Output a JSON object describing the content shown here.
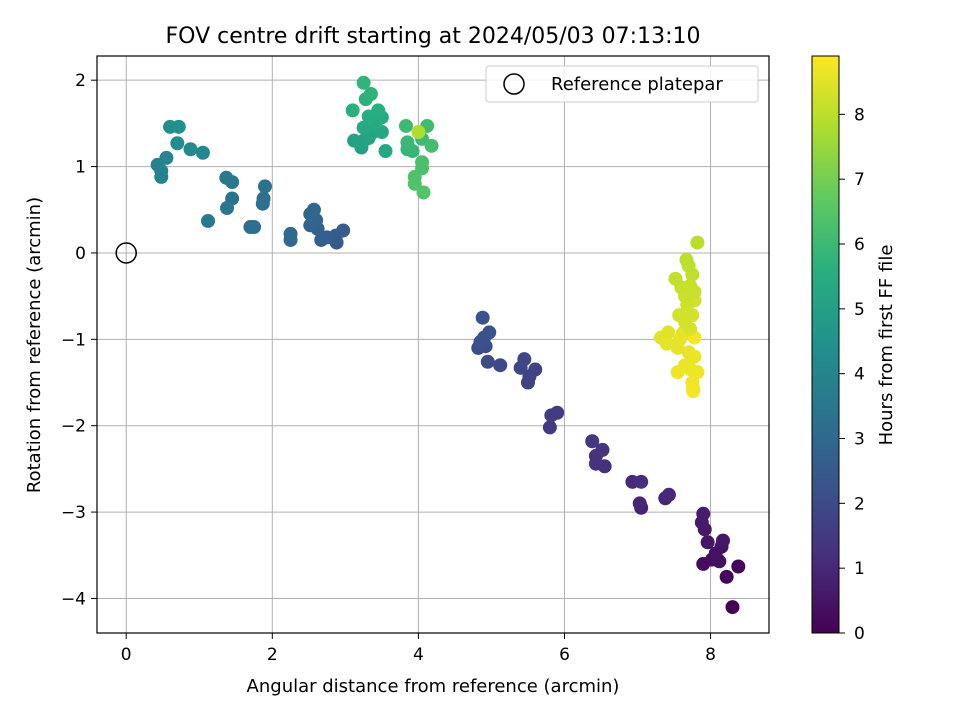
{
  "chart_data": {
    "type": "scatter",
    "title": "FOV centre drift starting at 2024/05/03 07:13:10",
    "xlabel": "Angular distance from reference (arcmin)",
    "ylabel": "Rotation from reference (arcmin)",
    "xlim": [
      -0.4,
      8.8
    ],
    "ylim": [
      -4.4,
      2.28
    ],
    "xticks": [
      0,
      2,
      4,
      6,
      8
    ],
    "yticks": [
      -4,
      -3,
      -2,
      -1,
      0,
      1,
      2
    ],
    "xtick_labels": [
      "0",
      "2",
      "4",
      "6",
      "8"
    ],
    "ytick_labels": [
      "−4",
      "−3",
      "−2",
      "−1",
      "0",
      "1",
      "2"
    ],
    "grid": true,
    "legend": {
      "position": "top-right",
      "entries": [
        "Reference platepar"
      ]
    },
    "reference_point": {
      "x": 0,
      "y": 0,
      "label": "Reference platepar"
    },
    "colorbar": {
      "label": "Hours from first FF file",
      "range": [
        0,
        8.9
      ],
      "ticks": [
        0,
        1,
        2,
        3,
        4,
        5,
        6,
        7,
        8
      ],
      "tick_labels": [
        "0",
        "1",
        "2",
        "3",
        "4",
        "5",
        "6",
        "7",
        "8"
      ],
      "colormap": "viridis"
    },
    "points": [
      {
        "x": 8.3,
        "y": -4.1,
        "t": 0.05
      },
      {
        "x": 8.22,
        "y": -3.75,
        "t": 0.15
      },
      {
        "x": 8.38,
        "y": -3.63,
        "t": 0.2
      },
      {
        "x": 7.9,
        "y": -3.6,
        "t": 0.25
      },
      {
        "x": 8.02,
        "y": -3.55,
        "t": 0.3
      },
      {
        "x": 8.12,
        "y": -3.57,
        "t": 0.35
      },
      {
        "x": 8.07,
        "y": -3.48,
        "t": 0.4
      },
      {
        "x": 8.15,
        "y": -3.4,
        "t": 0.45
      },
      {
        "x": 7.96,
        "y": -3.35,
        "t": 0.5
      },
      {
        "x": 8.17,
        "y": -3.33,
        "t": 0.55
      },
      {
        "x": 7.92,
        "y": -3.2,
        "t": 0.6
      },
      {
        "x": 7.88,
        "y": -3.12,
        "t": 0.65
      },
      {
        "x": 7.9,
        "y": -3.02,
        "t": 0.7
      },
      {
        "x": 7.05,
        "y": -2.95,
        "t": 0.85
      },
      {
        "x": 7.03,
        "y": -2.9,
        "t": 0.9
      },
      {
        "x": 7.38,
        "y": -2.84,
        "t": 0.95
      },
      {
        "x": 7.43,
        "y": -2.8,
        "t": 1.0
      },
      {
        "x": 6.93,
        "y": -2.65,
        "t": 1.05
      },
      {
        "x": 7.05,
        "y": -2.65,
        "t": 1.1
      },
      {
        "x": 6.55,
        "y": -2.47,
        "t": 1.2
      },
      {
        "x": 6.43,
        "y": -2.44,
        "t": 1.25
      },
      {
        "x": 6.43,
        "y": -2.35,
        "t": 1.3
      },
      {
        "x": 6.52,
        "y": -2.28,
        "t": 1.35
      },
      {
        "x": 6.38,
        "y": -2.18,
        "t": 1.4
      },
      {
        "x": 5.8,
        "y": -2.02,
        "t": 1.5
      },
      {
        "x": 5.82,
        "y": -1.88,
        "t": 1.55
      },
      {
        "x": 5.9,
        "y": -1.85,
        "t": 1.6
      },
      {
        "x": 5.5,
        "y": -1.5,
        "t": 1.7
      },
      {
        "x": 5.52,
        "y": -1.43,
        "t": 1.75
      },
      {
        "x": 5.6,
        "y": -1.35,
        "t": 1.8
      },
      {
        "x": 5.4,
        "y": -1.33,
        "t": 1.85
      },
      {
        "x": 5.45,
        "y": -1.23,
        "t": 1.9
      },
      {
        "x": 5.12,
        "y": -1.3,
        "t": 1.95
      },
      {
        "x": 4.95,
        "y": -1.26,
        "t": 2.0
      },
      {
        "x": 4.82,
        "y": -1.1,
        "t": 2.05
      },
      {
        "x": 4.92,
        "y": -1.08,
        "t": 2.1
      },
      {
        "x": 4.85,
        "y": -1.03,
        "t": 2.15
      },
      {
        "x": 4.9,
        "y": -0.98,
        "t": 2.2
      },
      {
        "x": 4.97,
        "y": -0.92,
        "t": 2.25
      },
      {
        "x": 4.88,
        "y": -0.75,
        "t": 2.3
      },
      {
        "x": 2.88,
        "y": 0.12,
        "t": 2.5
      },
      {
        "x": 2.87,
        "y": 0.2,
        "t": 2.55
      },
      {
        "x": 2.97,
        "y": 0.26,
        "t": 2.6
      },
      {
        "x": 2.75,
        "y": 0.18,
        "t": 2.65
      },
      {
        "x": 2.67,
        "y": 0.15,
        "t": 2.7
      },
      {
        "x": 2.62,
        "y": 0.28,
        "t": 2.75
      },
      {
        "x": 2.52,
        "y": 0.32,
        "t": 2.8
      },
      {
        "x": 2.6,
        "y": 0.38,
        "t": 2.85
      },
      {
        "x": 2.52,
        "y": 0.45,
        "t": 2.9
      },
      {
        "x": 2.57,
        "y": 0.5,
        "t": 2.95
      },
      {
        "x": 2.25,
        "y": 0.15,
        "t": 3.0
      },
      {
        "x": 2.25,
        "y": 0.22,
        "t": 3.05
      },
      {
        "x": 1.7,
        "y": 0.3,
        "t": 3.15
      },
      {
        "x": 1.75,
        "y": 0.3,
        "t": 3.2
      },
      {
        "x": 1.87,
        "y": 0.57,
        "t": 3.25
      },
      {
        "x": 1.88,
        "y": 0.63,
        "t": 3.3
      },
      {
        "x": 1.9,
        "y": 0.77,
        "t": 3.35
      },
      {
        "x": 1.45,
        "y": 0.63,
        "t": 3.4
      },
      {
        "x": 1.38,
        "y": 0.52,
        "t": 3.45
      },
      {
        "x": 1.45,
        "y": 0.82,
        "t": 3.5
      },
      {
        "x": 1.37,
        "y": 0.87,
        "t": 3.55
      },
      {
        "x": 1.12,
        "y": 0.37,
        "t": 3.6
      },
      {
        "x": 0.48,
        "y": 0.88,
        "t": 3.85
      },
      {
        "x": 0.48,
        "y": 0.95,
        "t": 3.9
      },
      {
        "x": 0.43,
        "y": 1.02,
        "t": 3.95
      },
      {
        "x": 0.55,
        "y": 1.1,
        "t": 4.0
      },
      {
        "x": 1.05,
        "y": 1.16,
        "t": 4.1
      },
      {
        "x": 0.88,
        "y": 1.2,
        "t": 4.2
      },
      {
        "x": 0.7,
        "y": 1.27,
        "t": 4.3
      },
      {
        "x": 0.6,
        "y": 1.46,
        "t": 4.4
      },
      {
        "x": 0.72,
        "y": 1.46,
        "t": 4.45
      },
      {
        "x": 3.22,
        "y": 1.22,
        "t": 5.0
      },
      {
        "x": 3.12,
        "y": 1.3,
        "t": 5.05
      },
      {
        "x": 3.25,
        "y": 1.3,
        "t": 5.1
      },
      {
        "x": 3.32,
        "y": 1.33,
        "t": 5.15
      },
      {
        "x": 3.38,
        "y": 1.4,
        "t": 5.2
      },
      {
        "x": 3.5,
        "y": 1.4,
        "t": 5.25
      },
      {
        "x": 3.55,
        "y": 1.18,
        "t": 5.3
      },
      {
        "x": 3.25,
        "y": 1.45,
        "t": 5.35
      },
      {
        "x": 3.42,
        "y": 1.52,
        "t": 5.4
      },
      {
        "x": 3.5,
        "y": 1.57,
        "t": 5.45
      },
      {
        "x": 3.32,
        "y": 1.58,
        "t": 5.5
      },
      {
        "x": 3.45,
        "y": 1.65,
        "t": 5.55
      },
      {
        "x": 3.1,
        "y": 1.65,
        "t": 5.6
      },
      {
        "x": 3.28,
        "y": 1.78,
        "t": 5.65
      },
      {
        "x": 3.35,
        "y": 1.84,
        "t": 5.7
      },
      {
        "x": 3.25,
        "y": 1.97,
        "t": 5.75
      },
      {
        "x": 3.85,
        "y": 1.2,
        "t": 5.85
      },
      {
        "x": 3.92,
        "y": 1.18,
        "t": 5.9
      },
      {
        "x": 3.85,
        "y": 1.28,
        "t": 5.95
      },
      {
        "x": 3.83,
        "y": 1.47,
        "t": 6.0
      },
      {
        "x": 4.05,
        "y": 1.32,
        "t": 6.05
      },
      {
        "x": 4.12,
        "y": 1.47,
        "t": 6.1
      },
      {
        "x": 4.18,
        "y": 1.24,
        "t": 6.15
      },
      {
        "x": 4.05,
        "y": 1.05,
        "t": 6.25
      },
      {
        "x": 4.05,
        "y": 0.98,
        "t": 6.3
      },
      {
        "x": 3.95,
        "y": 0.88,
        "t": 6.35
      },
      {
        "x": 3.95,
        "y": 0.8,
        "t": 6.4
      },
      {
        "x": 4.07,
        "y": 0.7,
        "t": 6.45
      },
      {
        "x": 4.0,
        "y": 1.4,
        "t": 7.8
      },
      {
        "x": 7.32,
        "y": -0.98,
        "t": 8.5
      },
      {
        "x": 7.42,
        "y": -0.92,
        "t": 8.52
      },
      {
        "x": 7.4,
        "y": -1.05,
        "t": 8.55
      },
      {
        "x": 7.55,
        "y": -1.1,
        "t": 8.57
      },
      {
        "x": 7.58,
        "y": -1.0,
        "t": 8.6
      },
      {
        "x": 7.62,
        "y": -0.93,
        "t": 8.6
      },
      {
        "x": 7.7,
        "y": -1.15,
        "t": 8.62
      },
      {
        "x": 7.78,
        "y": -1.2,
        "t": 8.65
      },
      {
        "x": 7.65,
        "y": -1.3,
        "t": 8.65
      },
      {
        "x": 7.73,
        "y": -1.35,
        "t": 8.68
      },
      {
        "x": 7.82,
        "y": -1.38,
        "t": 8.7
      },
      {
        "x": 7.55,
        "y": -1.38,
        "t": 8.7
      },
      {
        "x": 7.75,
        "y": -1.5,
        "t": 8.72
      },
      {
        "x": 7.76,
        "y": -1.56,
        "t": 8.72
      },
      {
        "x": 7.76,
        "y": -1.6,
        "t": 8.75
      },
      {
        "x": 7.78,
        "y": -0.98,
        "t": 8.75
      },
      {
        "x": 7.72,
        "y": -0.88,
        "t": 8.4
      },
      {
        "x": 7.65,
        "y": -0.8,
        "t": 8.35
      },
      {
        "x": 7.57,
        "y": -0.72,
        "t": 8.3
      },
      {
        "x": 7.75,
        "y": -0.72,
        "t": 8.3
      },
      {
        "x": 7.68,
        "y": -0.6,
        "t": 8.25
      },
      {
        "x": 7.78,
        "y": -0.55,
        "t": 8.25
      },
      {
        "x": 7.65,
        "y": -0.5,
        "t": 8.2
      },
      {
        "x": 7.78,
        "y": -0.45,
        "t": 8.2
      },
      {
        "x": 7.6,
        "y": -0.4,
        "t": 8.15
      },
      {
        "x": 7.72,
        "y": -0.38,
        "t": 8.15
      },
      {
        "x": 7.52,
        "y": -0.3,
        "t": 8.1
      },
      {
        "x": 7.75,
        "y": -0.25,
        "t": 8.1
      },
      {
        "x": 7.7,
        "y": -0.15,
        "t": 8.05
      },
      {
        "x": 7.67,
        "y": -0.08,
        "t": 8.0
      },
      {
        "x": 7.82,
        "y": 0.12,
        "t": 7.95
      }
    ]
  }
}
